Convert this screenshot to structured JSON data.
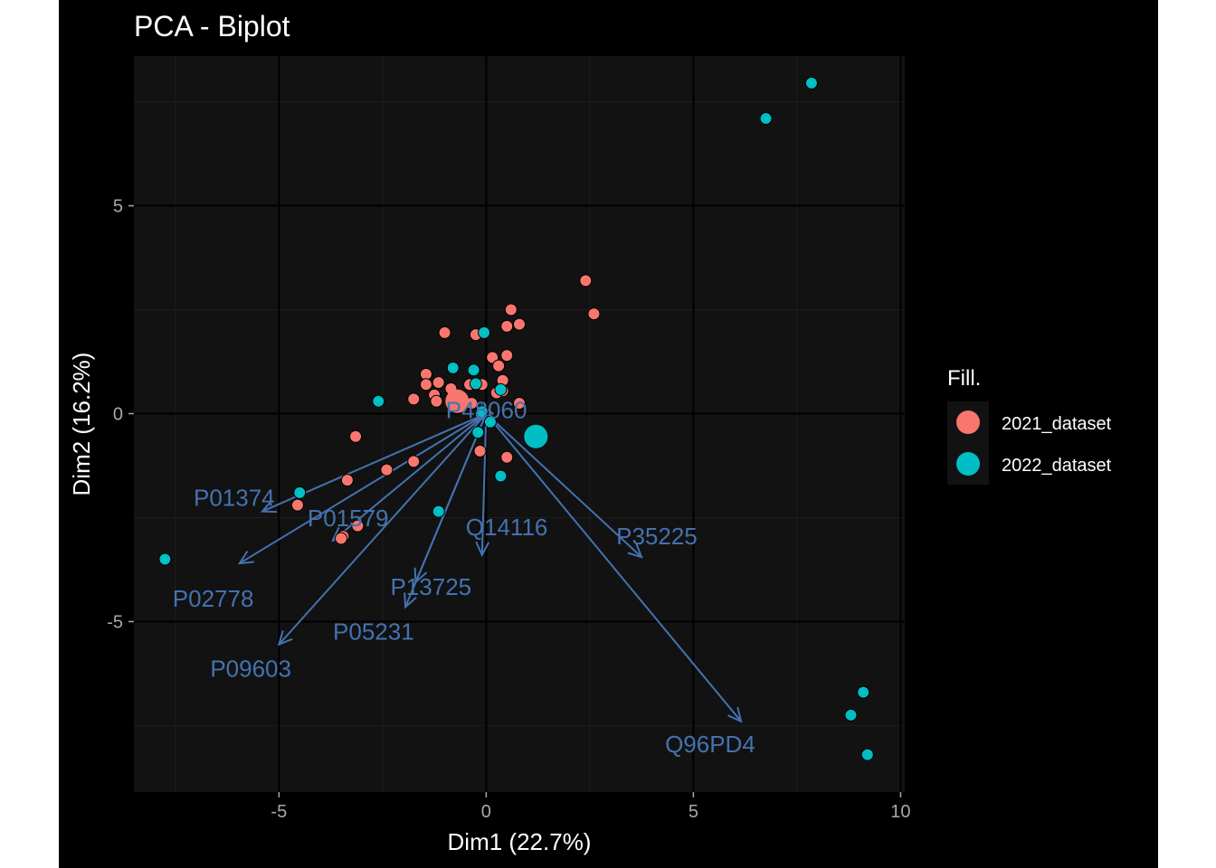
{
  "chart_data": {
    "type": "scatter",
    "subtype": "pca-biplot",
    "title": "PCA - Biplot",
    "xlabel": "Dim1 (22.7%)",
    "ylabel": "Dim2 (16.2%)",
    "xlim": [
      -8.5,
      10.1
    ],
    "ylim": [
      -9.1,
      8.6
    ],
    "x_ticks": [
      -5,
      0,
      5,
      10
    ],
    "x_tick_labels": [
      "-5",
      "0",
      "5",
      "10"
    ],
    "y_ticks": [
      -5,
      0,
      5
    ],
    "y_tick_labels": [
      "-5",
      "0",
      "5"
    ],
    "grid": true,
    "legend": {
      "title": "Fill.",
      "position": "right"
    },
    "series": [
      {
        "name": "2021_dataset",
        "color": "#F8766D",
        "points": [
          [
            2.4,
            3.2
          ],
          [
            2.6,
            2.4
          ],
          [
            0.6,
            2.5
          ],
          [
            0.8,
            2.15
          ],
          [
            0.5,
            2.1
          ],
          [
            -1.0,
            1.95
          ],
          [
            -0.25,
            1.9
          ],
          [
            0.5,
            1.4
          ],
          [
            0.15,
            1.35
          ],
          [
            0.3,
            1.15
          ],
          [
            -1.45,
            0.95
          ],
          [
            -1.15,
            0.75
          ],
          [
            -1.45,
            0.7
          ],
          [
            -0.4,
            0.7
          ],
          [
            0.4,
            0.8
          ],
          [
            -0.1,
            0.7
          ],
          [
            -0.85,
            0.6
          ],
          [
            -1.25,
            0.45
          ],
          [
            0.4,
            0.55
          ],
          [
            0.25,
            0.5
          ],
          [
            -1.75,
            0.35
          ],
          [
            -1.2,
            0.3
          ],
          [
            0.8,
            0.25
          ],
          [
            -0.35,
            0.25
          ],
          [
            -3.15,
            -0.55
          ],
          [
            -0.15,
            -0.9
          ],
          [
            0.5,
            -1.05
          ],
          [
            -1.75,
            -1.15
          ],
          [
            -2.4,
            -1.35
          ],
          [
            -3.35,
            -1.6
          ],
          [
            -4.55,
            -2.2
          ],
          [
            -3.1,
            -2.7
          ],
          [
            -3.45,
            -2.95
          ],
          [
            -3.5,
            -3.0
          ]
        ],
        "centroid": [
          -0.7,
          0.3
        ]
      },
      {
        "name": "2022_dataset",
        "color": "#00BFC4",
        "points": [
          [
            7.85,
            7.95
          ],
          [
            6.75,
            7.1
          ],
          [
            -0.05,
            1.95
          ],
          [
            -0.8,
            1.1
          ],
          [
            -0.3,
            1.05
          ],
          [
            -0.25,
            0.72
          ],
          [
            0.35,
            0.58
          ],
          [
            -2.6,
            0.3
          ],
          [
            -0.1,
            0.05
          ],
          [
            0.1,
            -0.2
          ],
          [
            -0.2,
            -0.45
          ],
          [
            0.35,
            -1.5
          ],
          [
            -4.5,
            -1.9
          ],
          [
            -1.15,
            -2.35
          ],
          [
            -7.75,
            -3.5
          ],
          [
            9.1,
            -6.7
          ],
          [
            8.8,
            -7.25
          ],
          [
            9.2,
            -8.2
          ]
        ],
        "centroid": [
          1.2,
          -0.55
        ]
      }
    ],
    "variables": [
      {
        "name": "P48060",
        "x": -0.1,
        "y": 0.2
      },
      {
        "name": "P01374",
        "x": -5.4,
        "y": -2.35
      },
      {
        "name": "P02778",
        "x": -5.95,
        "y": -3.6
      },
      {
        "name": "P01579",
        "x": -3.7,
        "y": -3.05
      },
      {
        "name": "P09603",
        "x": -5.0,
        "y": -5.55
      },
      {
        "name": "P05231",
        "x": -1.95,
        "y": -4.65
      },
      {
        "name": "P13725",
        "x": -1.7,
        "y": -4.05
      },
      {
        "name": "Q14116",
        "x": -0.1,
        "y": -3.4
      },
      {
        "name": "P35225",
        "x": 3.75,
        "y": -3.45
      },
      {
        "name": "Q96PD4",
        "x": 6.15,
        "y": -7.4
      }
    ],
    "variable_color": "#4472B0"
  }
}
